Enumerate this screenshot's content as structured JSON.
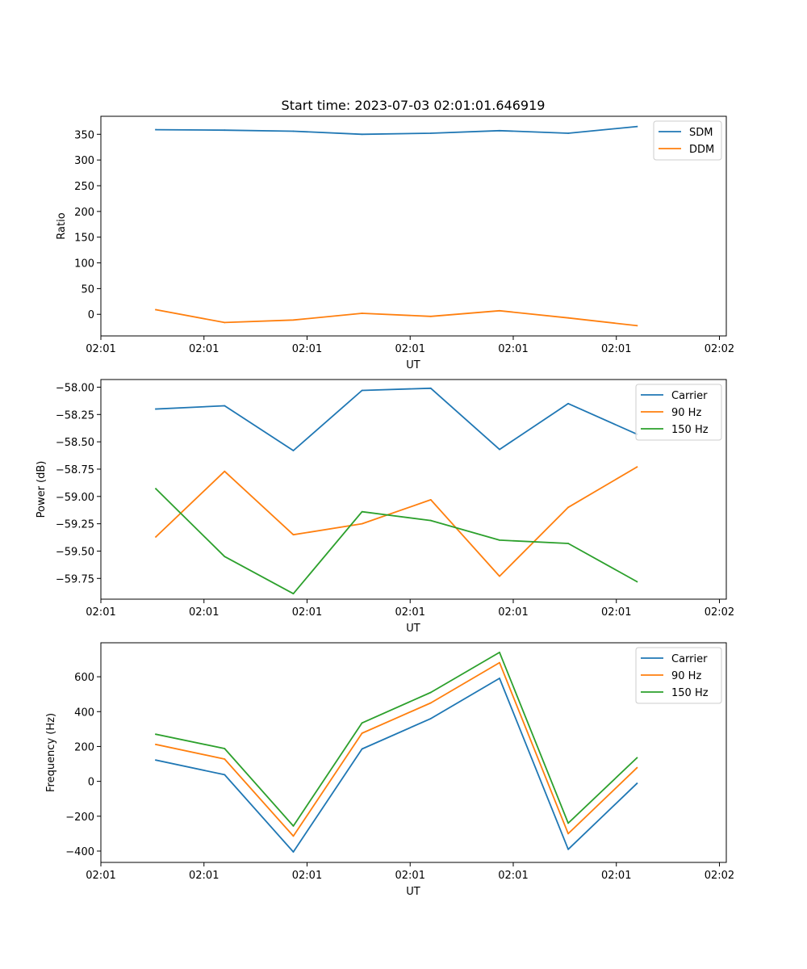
{
  "chart_data": [
    {
      "type": "line",
      "title": "Start time: 2023-07-03 02:01:01.646919",
      "xlabel": "UT",
      "ylabel": "Ratio",
      "x": [
        1,
        2,
        3,
        4,
        5,
        6,
        7,
        8
      ],
      "xlim": [
        0.2,
        9.3
      ],
      "xticks": [
        0.2,
        1.7,
        3.2,
        4.7,
        6.2,
        7.7,
        9.2
      ],
      "xtick_labels": [
        "02:01",
        "02:01",
        "02:01",
        "02:01",
        "02:01",
        "02:01",
        "02:02"
      ],
      "ylim": [
        -42,
        385
      ],
      "yticks": [
        0,
        50,
        100,
        150,
        200,
        250,
        300,
        350
      ],
      "ytick_labels": [
        "0",
        "50",
        "100",
        "150",
        "200",
        "250",
        "300",
        "350"
      ],
      "legend_position": "top-right",
      "series": [
        {
          "name": "SDM",
          "color": "#1f77b4",
          "values": [
            359,
            358,
            356,
            350,
            352,
            357,
            352,
            365
          ]
        },
        {
          "name": "DDM",
          "color": "#ff7f0e",
          "values": [
            9,
            -16,
            -11,
            2,
            -4,
            7,
            -7,
            -22
          ]
        }
      ]
    },
    {
      "type": "line",
      "title": "",
      "xlabel": "UT",
      "ylabel": "Power (dB)",
      "x": [
        1,
        2,
        3,
        4,
        5,
        6,
        7,
        8
      ],
      "xlim": [
        0.2,
        9.3
      ],
      "xticks": [
        0.2,
        1.7,
        3.2,
        4.7,
        6.2,
        7.7,
        9.2
      ],
      "xtick_labels": [
        "02:01",
        "02:01",
        "02:01",
        "02:01",
        "02:01",
        "02:01",
        "02:02"
      ],
      "ylim": [
        -59.94,
        -57.93
      ],
      "yticks": [
        -59.75,
        -59.5,
        -59.25,
        -59.0,
        -58.75,
        -58.5,
        -58.25,
        -58.0
      ],
      "ytick_labels": [
        "−59.75",
        "−59.50",
        "−59.25",
        "−59.00",
        "−58.75",
        "−58.50",
        "−58.25",
        "−58.00"
      ],
      "legend_position": "top-right",
      "series": [
        {
          "name": "Carrier",
          "color": "#1f77b4",
          "values": [
            -58.2,
            -58.17,
            -58.58,
            -58.03,
            -58.01,
            -58.57,
            -58.15,
            -58.43
          ]
        },
        {
          "name": "90 Hz",
          "color": "#ff7f0e",
          "values": [
            -59.37,
            -58.77,
            -59.35,
            -59.25,
            -59.03,
            -59.73,
            -59.1,
            -58.73
          ]
        },
        {
          "name": "150 Hz",
          "color": "#2ca02c",
          "values": [
            -58.93,
            -59.55,
            -59.89,
            -59.14,
            -59.22,
            -59.4,
            -59.43,
            -59.78
          ]
        }
      ]
    },
    {
      "type": "line",
      "title": "",
      "xlabel": "UT",
      "ylabel": "Frequency (Hz)",
      "x": [
        1,
        2,
        3,
        4,
        5,
        6,
        7,
        8
      ],
      "xlim": [
        0.2,
        9.3
      ],
      "xticks": [
        0.2,
        1.7,
        3.2,
        4.7,
        6.2,
        7.7,
        9.2
      ],
      "xtick_labels": [
        "02:01",
        "02:01",
        "02:01",
        "02:01",
        "02:01",
        "02:01",
        "02:02"
      ],
      "ylim": [
        -465,
        795
      ],
      "yticks": [
        -400,
        -200,
        0,
        200,
        400,
        600
      ],
      "ytick_labels": [
        "−400",
        "−200",
        "0",
        "200",
        "400",
        "600"
      ],
      "legend_position": "top-right",
      "series": [
        {
          "name": "Carrier",
          "color": "#1f77b4",
          "values": [
            122,
            38,
            -405,
            186,
            360,
            591,
            -390,
            -12
          ]
        },
        {
          "name": "90 Hz",
          "color": "#ff7f0e",
          "values": [
            212,
            128,
            -314,
            276,
            450,
            681,
            -300,
            78
          ]
        },
        {
          "name": "150 Hz",
          "color": "#2ca02c",
          "values": [
            270,
            188,
            -256,
            335,
            510,
            740,
            -240,
            135
          ]
        }
      ]
    }
  ]
}
